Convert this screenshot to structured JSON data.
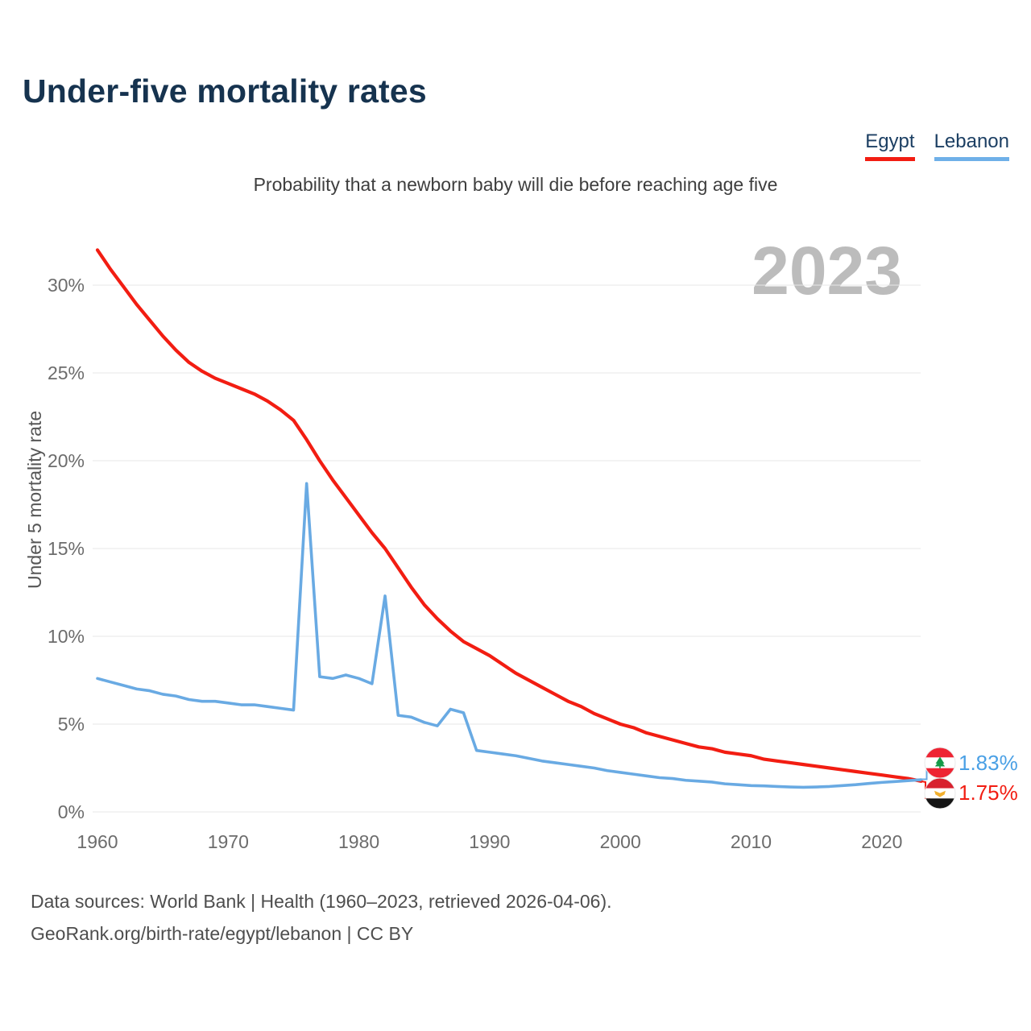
{
  "page": {
    "title": "Under-five mortality rates",
    "subtitle": "Probability that a newborn baby will die before reaching age five",
    "watermark": "2023"
  },
  "legend": {
    "items": [
      {
        "label": "Egypt",
        "color": "#f21d12"
      },
      {
        "label": "Lebanon",
        "color": "#6fb0e8"
      }
    ]
  },
  "end_labels": [
    {
      "country": "Lebanon",
      "value": "1.83%",
      "color": "#4aa0e5",
      "flag": "lebanon-flag"
    },
    {
      "country": "Egypt",
      "value": "1.75%",
      "color": "#f21d12",
      "flag": "egypt-flag"
    }
  ],
  "footer": {
    "line1": "Data sources: World Bank | Health (1960–2023, retrieved 2026-04-06).",
    "line2": "GeoRank.org/birth-rate/egypt/lebanon | CC BY"
  },
  "chart_data": {
    "type": "line",
    "title": "Under-five mortality rates",
    "subtitle": "Probability that a newborn baby will die before reaching age five",
    "xlabel": "",
    "ylabel": "Under 5 mortality rate",
    "unit": "%",
    "xlim": [
      1960,
      2023
    ],
    "ylim": [
      0,
      33
    ],
    "grid": true,
    "legend_position": "top-right",
    "y_axis": {
      "label": "Under 5 mortality rate",
      "ticks": [
        {
          "value": 30,
          "label": "30%"
        },
        {
          "value": 25,
          "label": "25%"
        },
        {
          "value": 20,
          "label": "20%"
        },
        {
          "value": 15,
          "label": "15%"
        },
        {
          "value": 10,
          "label": "10%"
        },
        {
          "value": 5,
          "label": "5%"
        },
        {
          "value": 0,
          "label": "0%"
        }
      ]
    },
    "x_axis": {
      "ticks": [
        {
          "value": 1960,
          "label": "1960"
        },
        {
          "value": 1970,
          "label": "1970"
        },
        {
          "value": 1980,
          "label": "1980"
        },
        {
          "value": 1990,
          "label": "1990"
        },
        {
          "value": 2000,
          "label": "2000"
        },
        {
          "value": 2010,
          "label": "2010"
        },
        {
          "value": 2020,
          "label": "2020"
        }
      ]
    },
    "years": [
      1960,
      1961,
      1962,
      1963,
      1964,
      1965,
      1966,
      1967,
      1968,
      1969,
      1970,
      1971,
      1972,
      1973,
      1974,
      1975,
      1976,
      1977,
      1978,
      1979,
      1980,
      1981,
      1982,
      1983,
      1984,
      1985,
      1986,
      1987,
      1988,
      1989,
      1990,
      1991,
      1992,
      1993,
      1994,
      1995,
      1996,
      1997,
      1998,
      1999,
      2000,
      2001,
      2002,
      2003,
      2004,
      2005,
      2006,
      2007,
      2008,
      2009,
      2010,
      2011,
      2012,
      2013,
      2014,
      2015,
      2016,
      2017,
      2018,
      2019,
      2020,
      2021,
      2022,
      2023
    ],
    "series": [
      {
        "name": "Egypt",
        "color": "#f21d12",
        "stroke_width": 4.2,
        "end_value_label": "1.75%",
        "values": [
          32.0,
          30.9,
          29.9,
          28.9,
          28.0,
          27.1,
          26.3,
          25.6,
          25.1,
          24.7,
          24.4,
          24.1,
          23.8,
          23.4,
          22.9,
          22.3,
          21.2,
          20.0,
          18.9,
          17.9,
          16.9,
          15.9,
          15.0,
          13.9,
          12.8,
          11.8,
          11.0,
          10.3,
          9.7,
          9.3,
          8.9,
          8.4,
          7.9,
          7.5,
          7.1,
          6.7,
          6.3,
          6.0,
          5.6,
          5.3,
          5.0,
          4.8,
          4.5,
          4.3,
          4.1,
          3.9,
          3.7,
          3.6,
          3.4,
          3.3,
          3.2,
          3.0,
          2.9,
          2.8,
          2.7,
          2.6,
          2.5,
          2.4,
          2.3,
          2.2,
          2.1,
          2.0,
          1.9,
          1.75
        ]
      },
      {
        "name": "Lebanon",
        "color": "#69aae3",
        "stroke_width": 3.6,
        "end_value_label": "1.83%",
        "values": [
          7.6,
          7.4,
          7.2,
          7.0,
          6.9,
          6.7,
          6.6,
          6.4,
          6.3,
          6.3,
          6.2,
          6.1,
          6.1,
          6.0,
          5.9,
          5.8,
          18.7,
          7.7,
          7.6,
          7.8,
          7.6,
          7.3,
          12.3,
          5.5,
          5.4,
          5.1,
          4.9,
          5.85,
          5.65,
          3.5,
          3.4,
          3.3,
          3.2,
          3.05,
          2.9,
          2.8,
          2.7,
          2.6,
          2.5,
          2.35,
          2.25,
          2.15,
          2.05,
          1.95,
          1.9,
          1.8,
          1.75,
          1.7,
          1.6,
          1.55,
          1.5,
          1.48,
          1.45,
          1.42,
          1.4,
          1.42,
          1.45,
          1.5,
          1.55,
          1.62,
          1.68,
          1.73,
          1.78,
          1.83
        ]
      }
    ]
  }
}
